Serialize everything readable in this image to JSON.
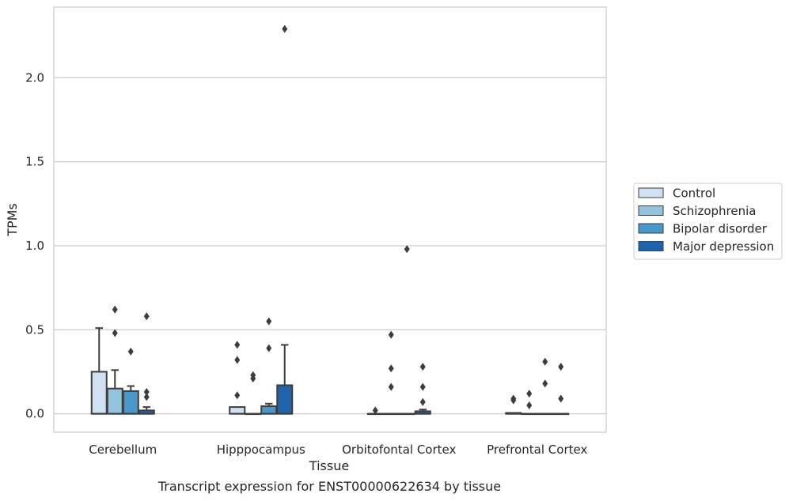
{
  "caption": "Transcript expression for ENST00000622634 by tissue",
  "colors": {
    "Control": "#cfe1f2",
    "Schizophrenia": "#93c4de",
    "Bipolar disorder": "#4a98c9",
    "Major depression": "#2163aa",
    "edge": "#3d3d3d",
    "grid": "#cccccc",
    "frame": "#cccccc"
  },
  "chart_data": {
    "type": "box",
    "xlabel": "Tissue",
    "ylabel": "TPMs",
    "categories": [
      "Cerebellum",
      "Hipppocampus",
      "Orbitofontal Cortex",
      "Prefrontal Cortex"
    ],
    "ylim": [
      -0.11,
      2.42
    ],
    "yticks": [
      0.0,
      0.5,
      1.0,
      1.5,
      2.0
    ],
    "ytick_labels": [
      "0.0",
      "0.5",
      "1.0",
      "1.5",
      "2.0"
    ],
    "grid": true,
    "legend_position": "right",
    "legend": [
      "Control",
      "Schizophrenia",
      "Bipolar disorder",
      "Major depression"
    ],
    "series": [
      {
        "name": "Control",
        "boxes": [
          {
            "whislo": 0.0,
            "q1": 0.0,
            "med": 0.0,
            "q3": 0.25,
            "whishi": 0.51,
            "fliers": []
          },
          {
            "whislo": 0.0,
            "q1": 0.0,
            "med": 0.0,
            "q3": 0.04,
            "whishi": 0.04,
            "fliers": [
              0.11,
              0.32,
              0.41
            ]
          },
          {
            "whislo": 0.0,
            "q1": 0.0,
            "med": 0.0,
            "q3": 0.0,
            "whishi": 0.0,
            "fliers": [
              0.02
            ]
          },
          {
            "whislo": 0.0,
            "q1": 0.0,
            "med": 0.0,
            "q3": 0.005,
            "whishi": 0.005,
            "fliers": [
              0.08,
              0.09
            ]
          }
        ]
      },
      {
        "name": "Schizophrenia",
        "boxes": [
          {
            "whislo": 0.0,
            "q1": 0.0,
            "med": 0.0,
            "q3": 0.15,
            "whishi": 0.26,
            "fliers": [
              0.48,
              0.62
            ]
          },
          {
            "whislo": 0.0,
            "q1": 0.0,
            "med": 0.0,
            "q3": 0.0,
            "whishi": 0.0,
            "fliers": [
              0.21,
              0.23
            ]
          },
          {
            "whislo": 0.0,
            "q1": 0.0,
            "med": 0.0,
            "q3": 0.0,
            "whishi": 0.0,
            "fliers": [
              0.16,
              0.27,
              0.47
            ]
          },
          {
            "whislo": 0.0,
            "q1": 0.0,
            "med": 0.0,
            "q3": 0.0,
            "whishi": 0.0,
            "fliers": [
              0.05,
              0.12
            ]
          }
        ]
      },
      {
        "name": "Bipolar disorder",
        "boxes": [
          {
            "whislo": 0.0,
            "q1": 0.0,
            "med": 0.0,
            "q3": 0.135,
            "whishi": 0.165,
            "fliers": [
              0.37
            ]
          },
          {
            "whislo": 0.0,
            "q1": 0.0,
            "med": 0.0,
            "q3": 0.045,
            "whishi": 0.06,
            "fliers": [
              0.39,
              0.55
            ]
          },
          {
            "whislo": 0.0,
            "q1": 0.0,
            "med": 0.0,
            "q3": 0.0,
            "whishi": 0.0,
            "fliers": [
              0.98
            ]
          },
          {
            "whislo": 0.0,
            "q1": 0.0,
            "med": 0.0,
            "q3": 0.0,
            "whishi": 0.0,
            "fliers": [
              0.18,
              0.31
            ]
          }
        ]
      },
      {
        "name": "Major depression",
        "boxes": [
          {
            "whislo": 0.0,
            "q1": 0.0,
            "med": 0.0,
            "q3": 0.02,
            "whishi": 0.04,
            "fliers": [
              0.1,
              0.13,
              0.58
            ]
          },
          {
            "whislo": 0.0,
            "q1": 0.0,
            "med": 0.0,
            "q3": 0.17,
            "whishi": 0.41,
            "fliers": [
              2.29
            ]
          },
          {
            "whislo": 0.0,
            "q1": 0.0,
            "med": 0.0,
            "q3": 0.015,
            "whishi": 0.025,
            "fliers": [
              0.07,
              0.16,
              0.28
            ]
          },
          {
            "whislo": 0.0,
            "q1": 0.0,
            "med": 0.0,
            "q3": 0.0,
            "whishi": 0.0,
            "fliers": [
              0.09,
              0.28
            ]
          }
        ]
      }
    ]
  }
}
